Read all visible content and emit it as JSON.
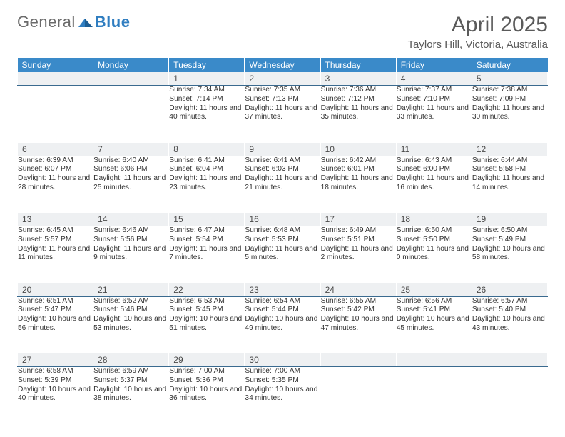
{
  "brand": {
    "part1": "General",
    "part2": "Blue"
  },
  "colors": {
    "header_bg": "#3a8ac9",
    "header_text": "#ffffff",
    "daynum_bg": "#eef0f2",
    "daynum_border": "#3a6a8f",
    "body_text": "#333333",
    "title_text": "#5a5a5a",
    "brand_grey": "#6a6a6a",
    "brand_blue": "#2f7dc0"
  },
  "title": "April 2025",
  "subtitle": "Taylors Hill, Victoria, Australia",
  "weekday_headers": [
    "Sunday",
    "Monday",
    "Tuesday",
    "Wednesday",
    "Thursday",
    "Friday",
    "Saturday"
  ],
  "first_weekday_index": 2,
  "days": [
    {
      "n": 1,
      "sunrise": "7:34 AM",
      "sunset": "7:14 PM",
      "daylight": "11 hours and 40 minutes."
    },
    {
      "n": 2,
      "sunrise": "7:35 AM",
      "sunset": "7:13 PM",
      "daylight": "11 hours and 37 minutes."
    },
    {
      "n": 3,
      "sunrise": "7:36 AM",
      "sunset": "7:12 PM",
      "daylight": "11 hours and 35 minutes."
    },
    {
      "n": 4,
      "sunrise": "7:37 AM",
      "sunset": "7:10 PM",
      "daylight": "11 hours and 33 minutes."
    },
    {
      "n": 5,
      "sunrise": "7:38 AM",
      "sunset": "7:09 PM",
      "daylight": "11 hours and 30 minutes."
    },
    {
      "n": 6,
      "sunrise": "6:39 AM",
      "sunset": "6:07 PM",
      "daylight": "11 hours and 28 minutes."
    },
    {
      "n": 7,
      "sunrise": "6:40 AM",
      "sunset": "6:06 PM",
      "daylight": "11 hours and 25 minutes."
    },
    {
      "n": 8,
      "sunrise": "6:41 AM",
      "sunset": "6:04 PM",
      "daylight": "11 hours and 23 minutes."
    },
    {
      "n": 9,
      "sunrise": "6:41 AM",
      "sunset": "6:03 PM",
      "daylight": "11 hours and 21 minutes."
    },
    {
      "n": 10,
      "sunrise": "6:42 AM",
      "sunset": "6:01 PM",
      "daylight": "11 hours and 18 minutes."
    },
    {
      "n": 11,
      "sunrise": "6:43 AM",
      "sunset": "6:00 PM",
      "daylight": "11 hours and 16 minutes."
    },
    {
      "n": 12,
      "sunrise": "6:44 AM",
      "sunset": "5:58 PM",
      "daylight": "11 hours and 14 minutes."
    },
    {
      "n": 13,
      "sunrise": "6:45 AM",
      "sunset": "5:57 PM",
      "daylight": "11 hours and 11 minutes."
    },
    {
      "n": 14,
      "sunrise": "6:46 AM",
      "sunset": "5:56 PM",
      "daylight": "11 hours and 9 minutes."
    },
    {
      "n": 15,
      "sunrise": "6:47 AM",
      "sunset": "5:54 PM",
      "daylight": "11 hours and 7 minutes."
    },
    {
      "n": 16,
      "sunrise": "6:48 AM",
      "sunset": "5:53 PM",
      "daylight": "11 hours and 5 minutes."
    },
    {
      "n": 17,
      "sunrise": "6:49 AM",
      "sunset": "5:51 PM",
      "daylight": "11 hours and 2 minutes."
    },
    {
      "n": 18,
      "sunrise": "6:50 AM",
      "sunset": "5:50 PM",
      "daylight": "11 hours and 0 minutes."
    },
    {
      "n": 19,
      "sunrise": "6:50 AM",
      "sunset": "5:49 PM",
      "daylight": "10 hours and 58 minutes."
    },
    {
      "n": 20,
      "sunrise": "6:51 AM",
      "sunset": "5:47 PM",
      "daylight": "10 hours and 56 minutes."
    },
    {
      "n": 21,
      "sunrise": "6:52 AM",
      "sunset": "5:46 PM",
      "daylight": "10 hours and 53 minutes."
    },
    {
      "n": 22,
      "sunrise": "6:53 AM",
      "sunset": "5:45 PM",
      "daylight": "10 hours and 51 minutes."
    },
    {
      "n": 23,
      "sunrise": "6:54 AM",
      "sunset": "5:44 PM",
      "daylight": "10 hours and 49 minutes."
    },
    {
      "n": 24,
      "sunrise": "6:55 AM",
      "sunset": "5:42 PM",
      "daylight": "10 hours and 47 minutes."
    },
    {
      "n": 25,
      "sunrise": "6:56 AM",
      "sunset": "5:41 PM",
      "daylight": "10 hours and 45 minutes."
    },
    {
      "n": 26,
      "sunrise": "6:57 AM",
      "sunset": "5:40 PM",
      "daylight": "10 hours and 43 minutes."
    },
    {
      "n": 27,
      "sunrise": "6:58 AM",
      "sunset": "5:39 PM",
      "daylight": "10 hours and 40 minutes."
    },
    {
      "n": 28,
      "sunrise": "6:59 AM",
      "sunset": "5:37 PM",
      "daylight": "10 hours and 38 minutes."
    },
    {
      "n": 29,
      "sunrise": "7:00 AM",
      "sunset": "5:36 PM",
      "daylight": "10 hours and 36 minutes."
    },
    {
      "n": 30,
      "sunrise": "7:00 AM",
      "sunset": "5:35 PM",
      "daylight": "10 hours and 34 minutes."
    }
  ],
  "labels": {
    "sunrise": "Sunrise:",
    "sunset": "Sunset:",
    "daylight": "Daylight:"
  }
}
